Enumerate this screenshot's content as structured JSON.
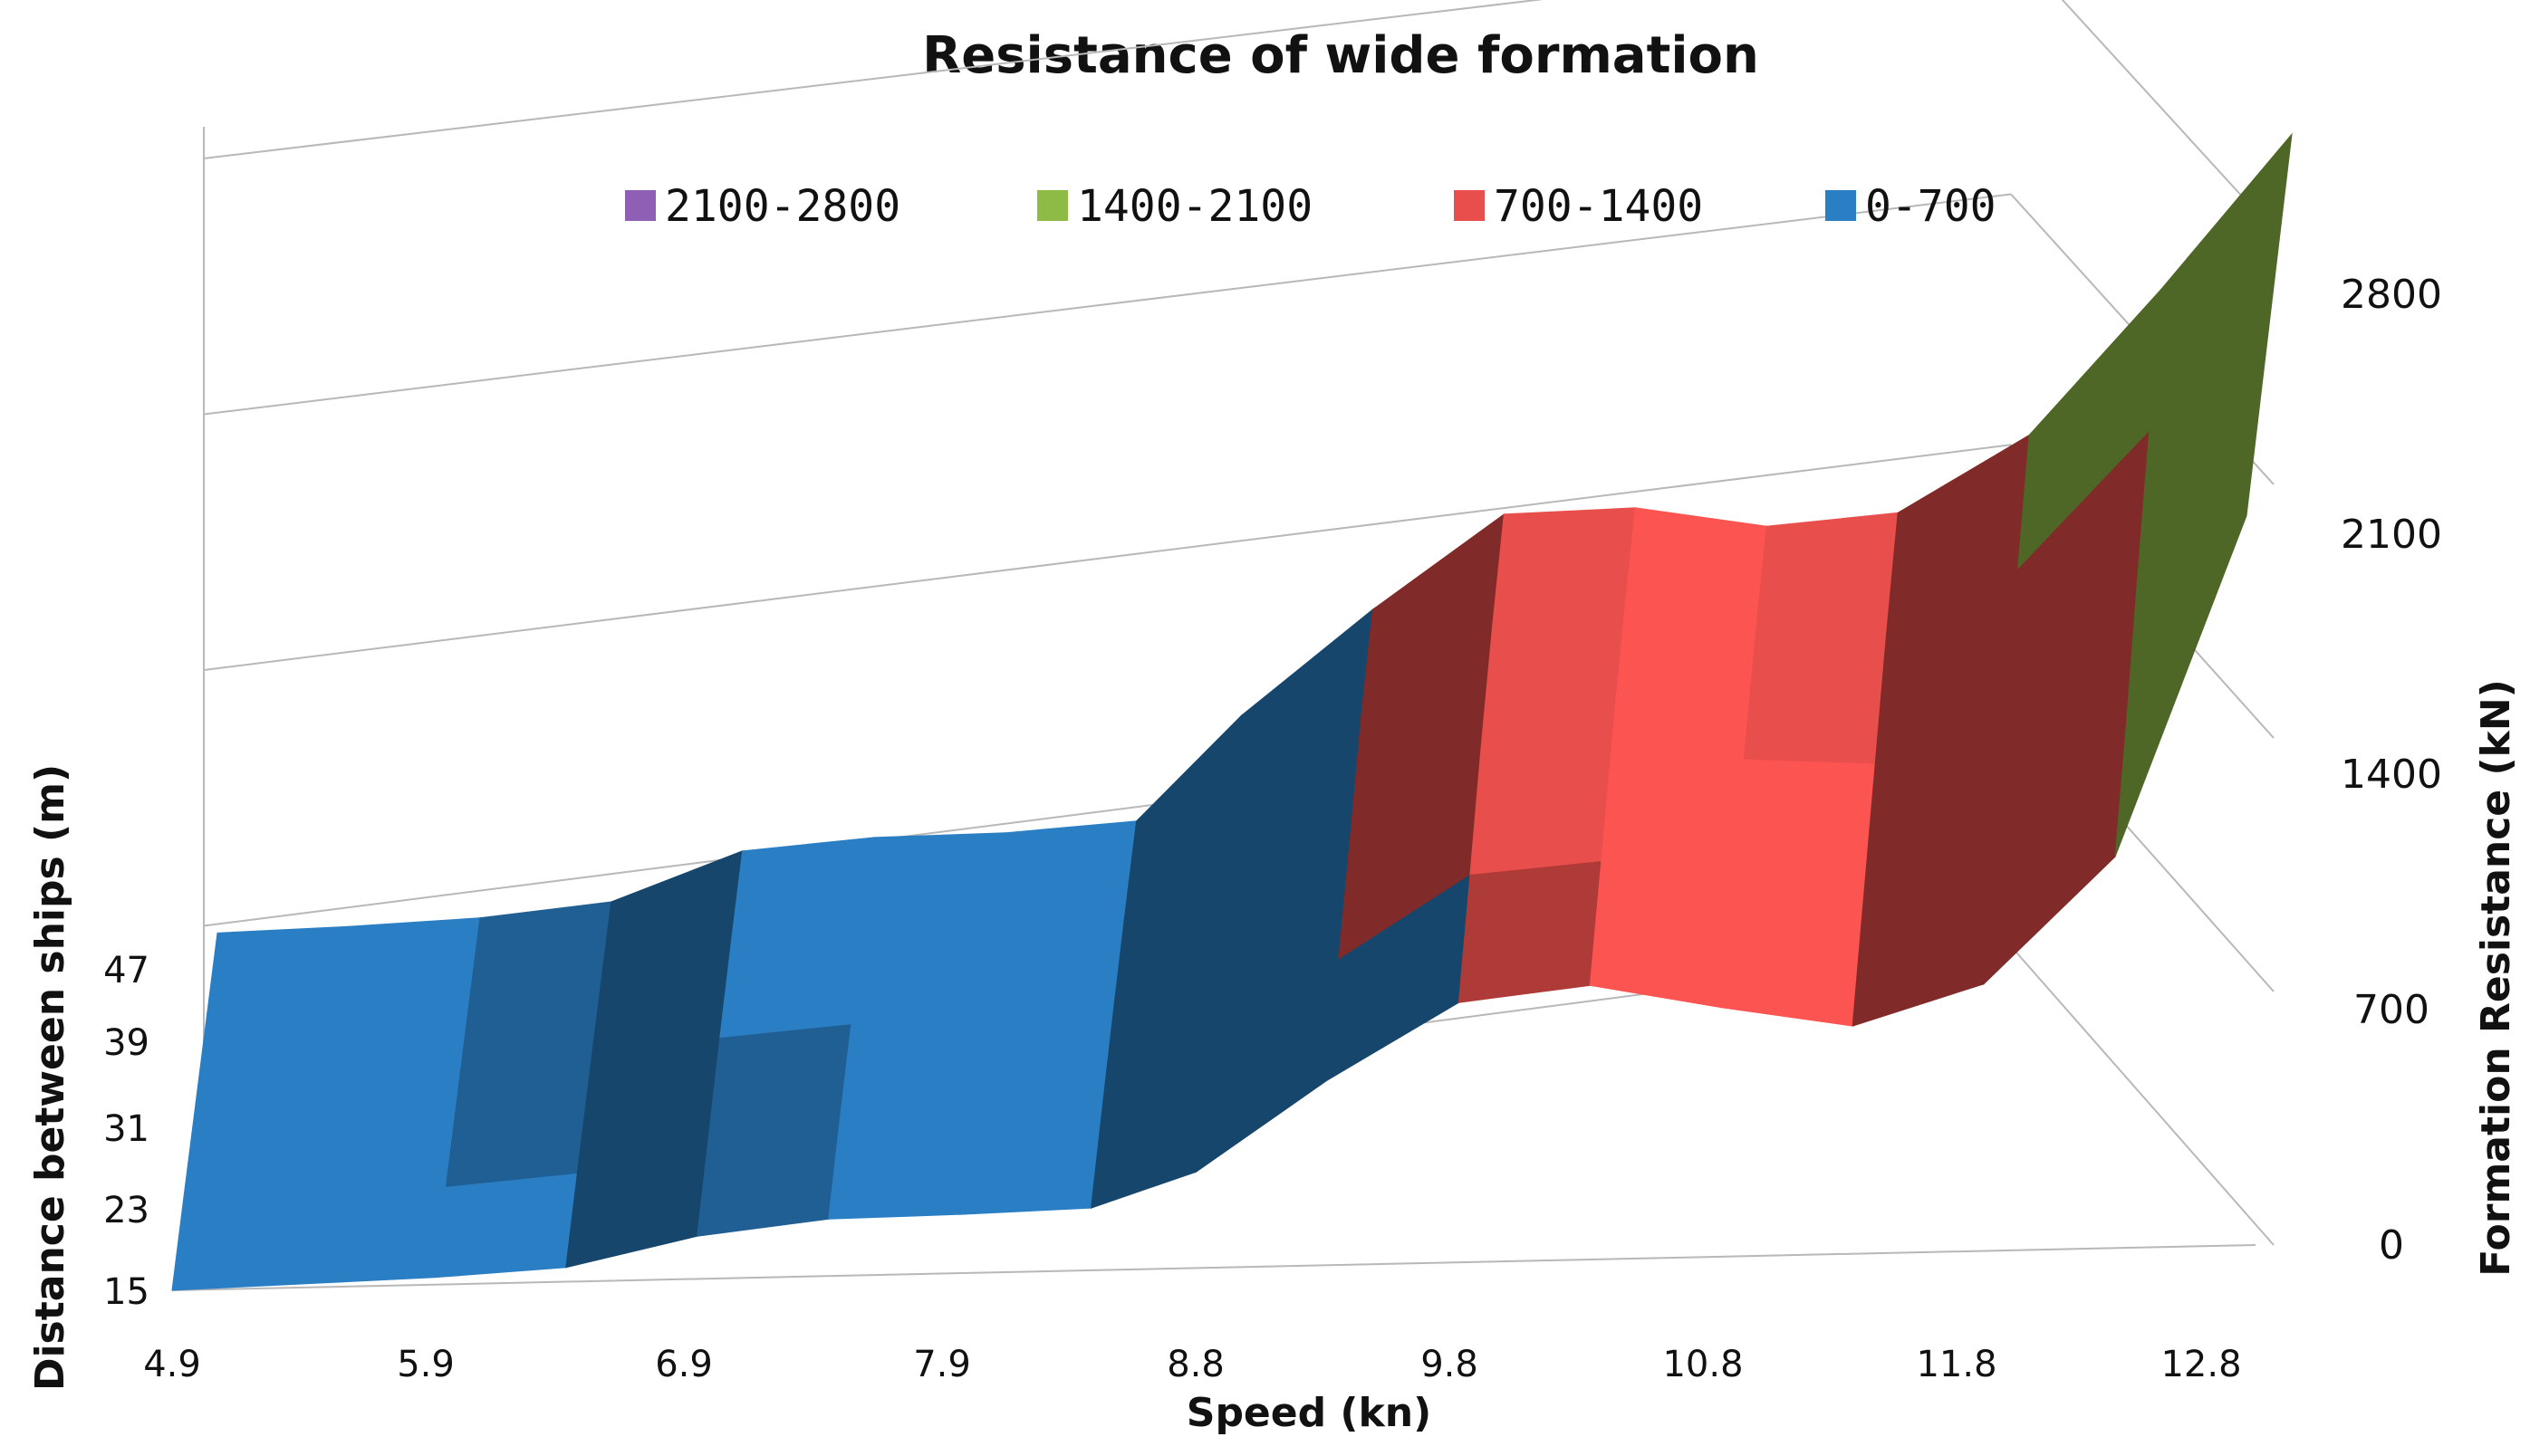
{
  "chart_data": {
    "type": "surface",
    "title": "Resistance of wide formation",
    "xlabel": "Speed (kn)",
    "ylabel": "Distance between ships (m)",
    "zlabel": "Formation Resistance (kN)",
    "x_ticks": [
      "4.9",
      "5.9",
      "6.9",
      "7.9",
      "8.8",
      "9.8",
      "10.8",
      "11.8",
      "12.8"
    ],
    "y_ticks": [
      "15",
      "23",
      "31",
      "39",
      "47"
    ],
    "z_ticks": [
      "0",
      "700",
      "1400",
      "2100",
      "2800"
    ],
    "zlim": [
      0,
      2800
    ],
    "legend": [
      {
        "label": "2100-2800",
        "color": "#8e5fb5"
      },
      {
        "label": "1400-2100",
        "color": "#8dbb45"
      },
      {
        "label": "700-1400",
        "color": "#e84e4b"
      },
      {
        "label": "0-700",
        "color": "#2a7fc4"
      }
    ],
    "legend_position": "top",
    "speed": [
      4.9,
      5.4,
      5.9,
      6.4,
      6.9,
      7.4,
      7.9,
      8.4,
      8.8,
      9.3,
      9.8,
      10.3,
      10.8,
      11.3,
      11.8,
      12.3,
      12.8
    ],
    "distance": [
      15,
      23,
      31,
      39,
      47
    ],
    "series": [
      {
        "name": "15",
        "values": [
          0,
          10,
          20,
          40,
          120,
          160,
          165,
          175,
          270,
          520,
          730,
          770,
          700,
          640,
          750,
          1100,
          2050
        ]
      },
      {
        "name": "23",
        "values": [
          5,
          15,
          25,
          55,
          150,
          190,
          195,
          210,
          360,
          610,
          840,
          870,
          800,
          760,
          880,
          1230,
          2070
        ]
      },
      {
        "name": "31",
        "values": [
          8,
          18,
          32,
          65,
          180,
          210,
          215,
          240,
          450,
          700,
          960,
          980,
          900,
          880,
          1020,
          1400,
          2090
        ]
      },
      {
        "name": "39",
        "values": [
          10,
          20,
          35,
          70,
          200,
          230,
          235,
          260,
          520,
          800,
          1050,
          1060,
          990,
          1000,
          1170,
          1550,
          2110
        ]
      },
      {
        "name": "47",
        "values": [
          12,
          22,
          38,
          75,
          210,
          240,
          245,
          270,
          560,
          850,
          1110,
          1120,
          1060,
          1090,
          1300,
          1700,
          2130
        ]
      }
    ],
    "grid": true
  }
}
